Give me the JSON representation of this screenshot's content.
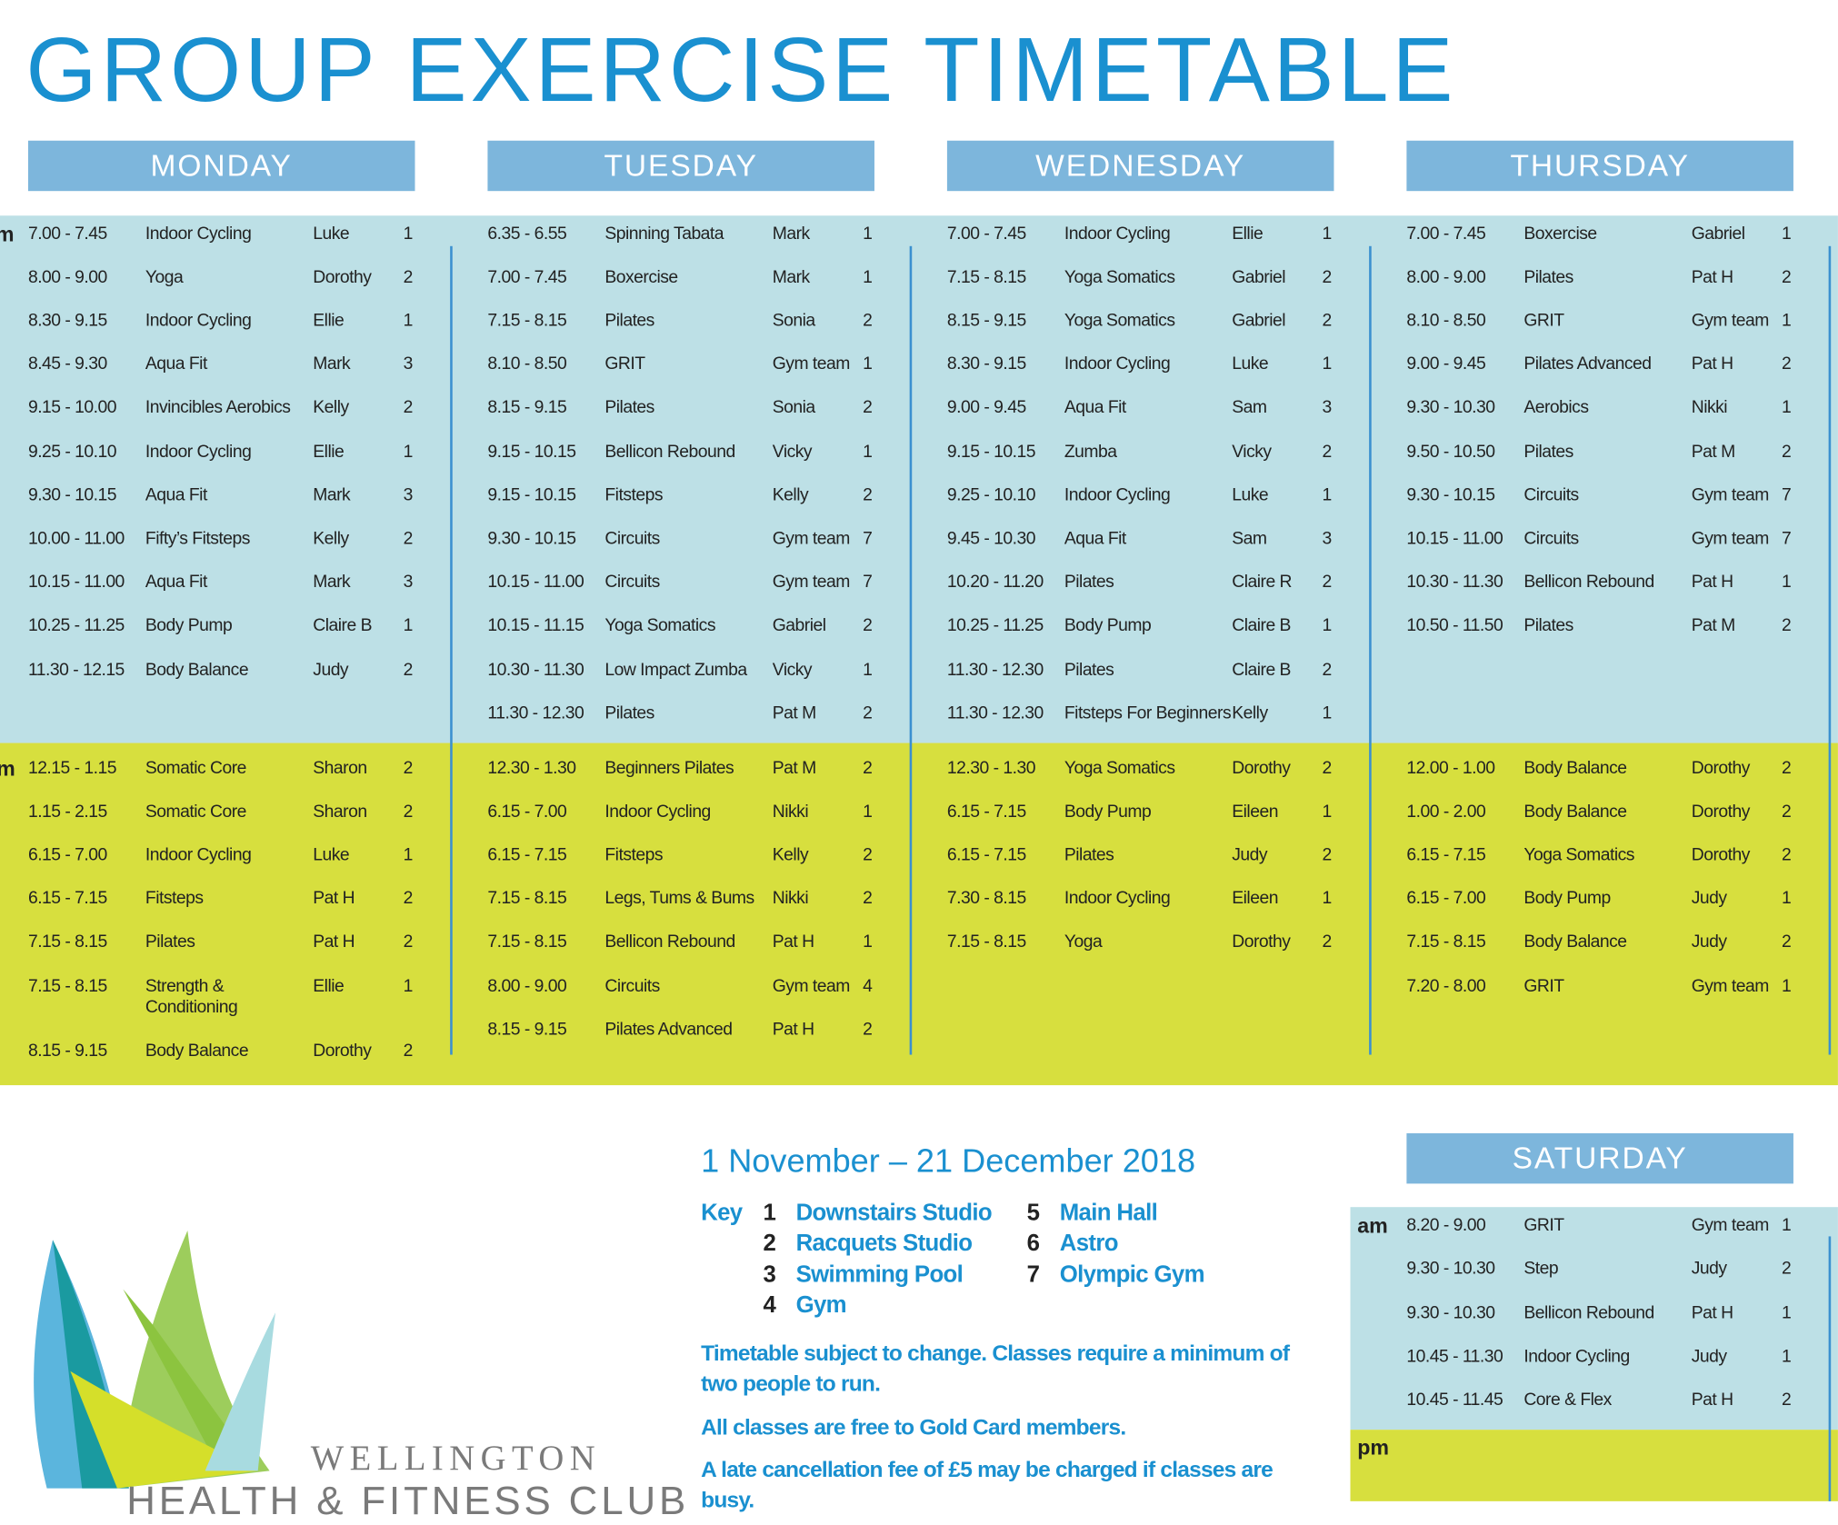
{
  "title": "GROUP EXERCISE TIMETABLE",
  "period_labels": {
    "am": "am",
    "pm": "pm"
  },
  "days": [
    {
      "name": "MONDAY",
      "am": [
        [
          "7.00 - 7.45",
          "Indoor Cycling",
          "Luke",
          "1"
        ],
        [
          "8.00 - 9.00",
          "Yoga",
          "Dorothy",
          "2"
        ],
        [
          "8.30 - 9.15",
          "Indoor Cycling",
          "Ellie",
          "1"
        ],
        [
          "8.45 - 9.30",
          "Aqua Fit",
          "Mark",
          "3"
        ],
        [
          "9.15 - 10.00",
          "Invincibles Aerobics",
          "Kelly",
          "2"
        ],
        [
          "9.25 - 10.10",
          "Indoor Cycling",
          "Ellie",
          "1"
        ],
        [
          "9.30 - 10.15",
          "Aqua Fit",
          "Mark",
          "3"
        ],
        [
          "10.00 - 11.00",
          "Fifty’s Fitsteps",
          "Kelly",
          "2"
        ],
        [
          "10.15 - 11.00",
          "Aqua Fit",
          "Mark",
          "3"
        ],
        [
          "10.25 - 11.25",
          "Body Pump",
          "Claire B",
          "1"
        ],
        [
          "11.30 - 12.15",
          "Body Balance",
          "Judy",
          "2"
        ]
      ],
      "pm": [
        [
          "12.15 - 1.15",
          "Somatic Core",
          "Sharon",
          "2"
        ],
        [
          "1.15 - 2.15",
          "Somatic Core",
          "Sharon",
          "2"
        ],
        [
          "6.15 - 7.00",
          "Indoor Cycling",
          "Luke",
          "1"
        ],
        [
          "6.15 - 7.15",
          "Fitsteps",
          "Pat H",
          "2"
        ],
        [
          "7.15 - 8.15",
          "Pilates",
          "Pat H",
          "2"
        ],
        [
          "7.15 - 8.15",
          "Strength & Conditioning",
          "Ellie",
          "1"
        ],
        [
          "8.15 - 9.15",
          "Body Balance",
          "Dorothy",
          "2"
        ]
      ]
    },
    {
      "name": "TUESDAY",
      "am": [
        [
          "6.35 - 6.55",
          "Spinning Tabata",
          "Mark",
          "1"
        ],
        [
          "7.00 - 7.45",
          "Boxercise",
          "Mark",
          "1"
        ],
        [
          "7.15 - 8.15",
          "Pilates",
          "Sonia",
          "2"
        ],
        [
          "8.10 - 8.50",
          "GRIT",
          "Gym team",
          "1"
        ],
        [
          "8.15 - 9.15",
          "Pilates",
          "Sonia",
          "2"
        ],
        [
          "9.15 - 10.15",
          "Bellicon Rebound",
          "Vicky",
          "1"
        ],
        [
          "9.15 - 10.15",
          "Fitsteps",
          "Kelly",
          "2"
        ],
        [
          "9.30 - 10.15",
          "Circuits",
          "Gym team",
          "7"
        ],
        [
          "10.15 - 11.00",
          "Circuits",
          "Gym team",
          "7"
        ],
        [
          "10.15 - 11.15",
          "Yoga Somatics",
          "Gabriel",
          "2"
        ],
        [
          "10.30 - 11.30",
          "Low Impact Zumba",
          "Vicky",
          "1"
        ],
        [
          "11.30 - 12.30",
          "Pilates",
          "Pat M",
          "2"
        ]
      ],
      "pm": [
        [
          "12.30 - 1.30",
          "Beginners Pilates",
          "Pat M",
          "2"
        ],
        [
          "6.15 - 7.00",
          "Indoor Cycling",
          "Nikki",
          "1"
        ],
        [
          "6.15 - 7.15",
          "Fitsteps",
          "Kelly",
          "2"
        ],
        [
          "7.15 - 8.15",
          "Legs, Tums & Bums",
          "Nikki",
          "2"
        ],
        [
          "7.15 - 8.15",
          "Bellicon Rebound",
          "Pat H",
          "1"
        ],
        [
          "8.00 - 9.00",
          "Circuits",
          "Gym team",
          "4"
        ],
        [
          "8.15 - 9.15",
          "Pilates Advanced",
          "Pat H",
          "2"
        ]
      ]
    },
    {
      "name": "WEDNESDAY",
      "am": [
        [
          "7.00 - 7.45",
          "Indoor Cycling",
          "Ellie",
          "1"
        ],
        [
          "7.15 - 8.15",
          "Yoga Somatics",
          "Gabriel",
          "2"
        ],
        [
          "8.15 - 9.15",
          "Yoga Somatics",
          "Gabriel",
          "2"
        ],
        [
          "8.30 - 9.15",
          "Indoor Cycling",
          "Luke",
          "1"
        ],
        [
          "9.00 - 9.45",
          "Aqua Fit",
          "Sam",
          "3"
        ],
        [
          "9.15 - 10.15",
          "Zumba",
          "Vicky",
          "2"
        ],
        [
          "9.25 - 10.10",
          "Indoor Cycling",
          "Luke",
          "1"
        ],
        [
          "9.45 - 10.30",
          "Aqua Fit",
          "Sam",
          "3"
        ],
        [
          "10.20 - 11.20",
          "Pilates",
          "Claire R",
          "2"
        ],
        [
          "10.25 - 11.25",
          "Body Pump",
          "Claire B",
          "1"
        ],
        [
          "11.30 - 12.30",
          "Pilates",
          "Claire B",
          "2"
        ],
        [
          "11.30 - 12.30",
          "Fitsteps For Beginners",
          "Kelly",
          "1"
        ]
      ],
      "pm": [
        [
          "12.30 - 1.30",
          "Yoga Somatics",
          "Dorothy",
          "2"
        ],
        [
          "6.15 - 7.15",
          "Body Pump",
          "Eileen",
          "1"
        ],
        [
          "6.15 - 7.15",
          "Pilates",
          "Judy",
          "2"
        ],
        [
          "7.30 - 8.15",
          "Indoor Cycling",
          "Eileen",
          "1"
        ],
        [
          "7.15 - 8.15",
          "Yoga",
          "Dorothy",
          "2"
        ]
      ]
    },
    {
      "name": "THURSDAY",
      "am": [
        [
          "7.00 - 7.45",
          "Boxercise",
          "Gabriel",
          "1"
        ],
        [
          "8.00 - 9.00",
          "Pilates",
          "Pat H",
          "2"
        ],
        [
          "8.10 - 8.50",
          "GRIT",
          "Gym team",
          "1"
        ],
        [
          "9.00 - 9.45",
          "Pilates Advanced",
          "Pat H",
          "2"
        ],
        [
          "9.30 - 10.30",
          "Aerobics",
          "Nikki",
          "1"
        ],
        [
          "9.50 - 10.50",
          "Pilates",
          "Pat M",
          "2"
        ],
        [
          "9.30 - 10.15",
          "Circuits",
          "Gym team",
          "7"
        ],
        [
          "10.15 - 11.00",
          "Circuits",
          "Gym team",
          "7"
        ],
        [
          "10.30 - 11.30",
          "Bellicon Rebound",
          "Pat H",
          "1"
        ],
        [
          "10.50 - 11.50",
          "Pilates",
          "Pat M",
          "2"
        ]
      ],
      "pm": [
        [
          "12.00 - 1.00",
          "Body Balance",
          "Dorothy",
          "2"
        ],
        [
          "1.00 - 2.00",
          "Body Balance",
          "Dorothy",
          "2"
        ],
        [
          "6.15 - 7.15",
          "Yoga Somatics",
          "Dorothy",
          "2"
        ],
        [
          "6.15 - 7.00",
          "Body Pump",
          "Judy",
          "1"
        ],
        [
          "7.15 - 8.15",
          "Body Balance",
          "Judy",
          "2"
        ],
        [
          "7.20 - 8.00",
          "GRIT",
          "Gym team",
          "1"
        ]
      ]
    }
  ],
  "saturday": {
    "name": "SATURDAY",
    "am": [
      [
        "8.20 - 9.00",
        "GRIT",
        "Gym team",
        "1"
      ],
      [
        "9.30 - 10.30",
        "Step",
        "Judy",
        "2"
      ],
      [
        "9.30 - 10.30",
        "Bellicon Rebound",
        "Pat H",
        "1"
      ],
      [
        "10.45 - 11.30",
        "Indoor Cycling",
        "Judy",
        "1"
      ],
      [
        "10.45 - 11.45",
        "Core & Flex",
        "Pat H",
        "2"
      ]
    ],
    "pm": []
  },
  "date_range": "1 November – 21 December 2018",
  "key": {
    "label": "Key",
    "items": [
      [
        "1",
        "Downstairs Studio"
      ],
      [
        "2",
        "Racquets Studio"
      ],
      [
        "3",
        "Swimming Pool"
      ],
      [
        "4",
        "Gym"
      ],
      [
        "5",
        "Main Hall"
      ],
      [
        "6",
        "Astro"
      ],
      [
        "7",
        "Olympic Gym"
      ]
    ]
  },
  "notes": [
    "Timetable subject to change. Classes require a minimum of two people to run.",
    "All classes are free to Gold Card members.",
    "A late cancellation fee of £5 may be charged if classes are busy."
  ],
  "logo": {
    "name": "WELLINGTON",
    "tagline": "HEALTH & FITNESS CLUB"
  }
}
